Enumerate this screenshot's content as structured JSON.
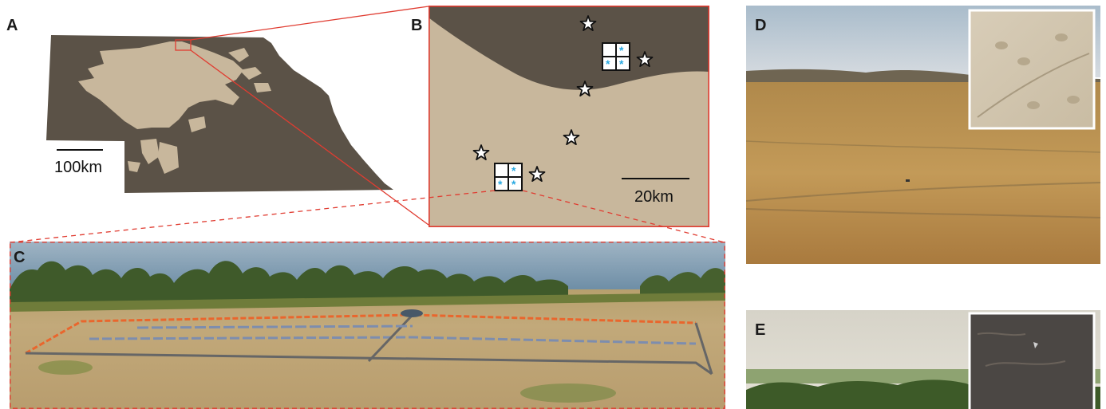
{
  "panels": {
    "a": {
      "label": "A",
      "scale_label": "100km"
    },
    "b": {
      "label": "B",
      "scale_label": "20km",
      "cell_marker": "*"
    },
    "c": {
      "label": "C"
    },
    "d": {
      "label": "D"
    },
    "e": {
      "label": "E"
    }
  },
  "colors": {
    "dark_terrain": "#5b5247",
    "sand_terrain": "#c8b79c",
    "callout_red": "#e03c31",
    "marker_blue": "#29a9e1",
    "frame_white": "#ffffff"
  },
  "icons": [
    "star-icon",
    "asterisk-icon",
    "exclosure-grid-icon"
  ]
}
